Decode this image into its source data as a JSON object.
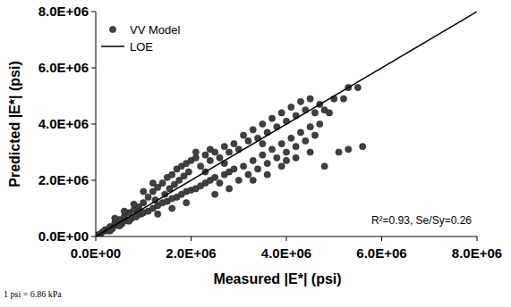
{
  "chart_data": {
    "type": "scatter",
    "x_label": "Measured |E*| (psi)",
    "y_label": "Predicted |E*| (psi)",
    "annotations": [
      "R²=0.93, Se/Sy=0.26",
      "1 psi = 6.86 kPa"
    ],
    "xlim": [
      0,
      8000000
    ],
    "ylim": [
      0,
      8000000
    ],
    "xticks": [
      {
        "value": 0,
        "label": "0.0E+00"
      },
      {
        "value": 2000000,
        "label": "2.0E+06"
      },
      {
        "value": 4000000,
        "label": "4.0E+06"
      },
      {
        "value": 6000000,
        "label": "6.0E+06"
      },
      {
        "value": 8000000,
        "label": "8.0E+06"
      }
    ],
    "yticks": [
      {
        "value": 0,
        "label": "0.0E+00"
      },
      {
        "value": 2000000,
        "label": "2.0E+06"
      },
      {
        "value": 4000000,
        "label": "4.0E+06"
      },
      {
        "value": 6000000,
        "label": "6.0E+06"
      },
      {
        "value": 8000000,
        "label": "8.0E+06"
      }
    ],
    "grid": false,
    "legend": "top-left",
    "series": [
      {
        "name": "VV Model",
        "type": "scatter",
        "color": "#404040",
        "marker": "circle",
        "x": [
          50000,
          100000,
          150000,
          200000,
          250000,
          300000,
          350000,
          400000,
          450000,
          500000,
          550000,
          600000,
          650000,
          700000,
          750000,
          800000,
          850000,
          900000,
          950000,
          1000000,
          1000000,
          300000,
          500000,
          700000,
          900000,
          800000,
          600000,
          400000,
          1100000,
          1100000,
          1200000,
          1200000,
          1250000,
          1300000,
          1300000,
          1400000,
          1400000,
          1450000,
          1500000,
          1500000,
          1550000,
          1600000,
          1600000,
          1650000,
          1700000,
          1700000,
          1750000,
          1800000,
          1800000,
          1850000,
          1900000,
          1900000,
          1950000,
          2000000,
          2000000,
          1200000,
          1000000,
          1300000,
          1600000,
          1900000,
          2100000,
          2100000,
          2200000,
          2200000,
          2300000,
          2300000,
          2400000,
          2400000,
          2500000,
          2500000,
          2600000,
          2600000,
          2700000,
          2700000,
          2800000,
          2800000,
          2900000,
          2900000,
          3000000,
          3000000,
          2300000,
          2700000,
          2500000,
          2800000,
          2100000,
          2400000,
          3100000,
          3100000,
          3200000,
          3200000,
          3300000,
          3300000,
          3400000,
          3400000,
          3500000,
          3500000,
          3600000,
          3600000,
          3700000,
          3700000,
          3800000,
          3800000,
          3900000,
          3900000,
          4000000,
          4000000,
          3300000,
          3600000,
          3900000,
          3500000,
          4100000,
          4100000,
          4200000,
          4200000,
          4300000,
          4300000,
          4400000,
          4400000,
          4500000,
          4500000,
          4600000,
          4600000,
          4700000,
          4700000,
          4800000,
          4800000,
          4900000,
          5000000,
          5100000,
          5200000,
          5300000,
          5300000,
          5500000,
          5600000,
          4200000,
          4500000,
          4000000
        ],
        "values": [
          60000,
          90000,
          170000,
          240000,
          200000,
          350000,
          280000,
          480000,
          400000,
          600000,
          450000,
          720000,
          560000,
          850000,
          640000,
          950000,
          700000,
          1050000,
          800000,
          1200000,
          850000,
          200000,
          380000,
          550000,
          900000,
          1150000,
          900000,
          650000,
          1400000,
          900000,
          1600000,
          1000000,
          1300000,
          1750000,
          1100000,
          1900000,
          1200000,
          1500000,
          2100000,
          1250000,
          1700000,
          2200000,
          1350000,
          1850000,
          2400000,
          1400000,
          2000000,
          2500000,
          1500000,
          2150000,
          2600000,
          1600000,
          2300000,
          2700000,
          1650000,
          1900000,
          1600000,
          800000,
          1000000,
          1200000,
          2800000,
          1700000,
          2500000,
          1800000,
          2900000,
          1900000,
          2700000,
          2000000,
          3000000,
          2100000,
          2800000,
          1900000,
          3200000,
          2200000,
          3000000,
          2300000,
          3300000,
          2400000,
          3100000,
          2000000,
          2300000,
          2600000,
          1500000,
          1700000,
          3000000,
          3100000,
          3600000,
          2500000,
          3400000,
          2200000,
          3800000,
          2700000,
          3500000,
          2400000,
          4000000,
          2900000,
          3700000,
          2600000,
          4200000,
          3100000,
          3900000,
          2800000,
          4400000,
          3300000,
          4100000,
          3000000,
          2000000,
          2200000,
          2500000,
          3300000,
          4600000,
          3500000,
          4300000,
          3200000,
          4800000,
          3700000,
          4500000,
          3400000,
          4900000,
          3900000,
          4400000,
          3600000,
          4700000,
          4000000,
          4500000,
          2500000,
          4400000,
          4900000,
          3000000,
          4900000,
          3100000,
          5300000,
          5300000,
          3200000,
          2800000,
          3000000,
          2700000
        ]
      },
      {
        "name": "LOE",
        "type": "line",
        "color": "#000000",
        "line_style": "solid",
        "x": [
          0,
          8000000
        ],
        "values": [
          0,
          8000000
        ]
      }
    ]
  }
}
